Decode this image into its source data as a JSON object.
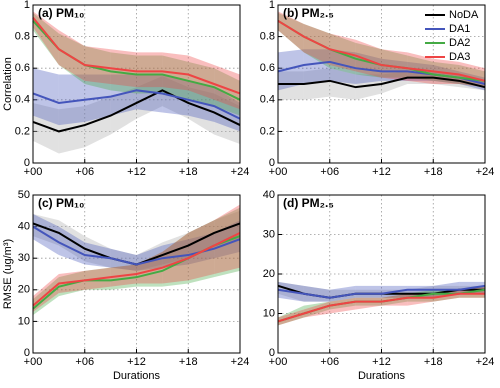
{
  "chart_data": [
    {
      "type": "line",
      "title": "(a) PM₁₀",
      "ylabel": "Correlation",
      "x": [
        0,
        3,
        6,
        9,
        12,
        15,
        18,
        21,
        24
      ],
      "xlim": [
        0,
        24
      ],
      "xticks": [
        {
          "value": 0,
          "label": "+00"
        },
        {
          "value": 6,
          "label": "+06"
        },
        {
          "value": 12,
          "label": "+12"
        },
        {
          "value": 18,
          "label": "+18"
        },
        {
          "value": 24,
          "label": "+24"
        }
      ],
      "ylim": [
        0,
        1
      ],
      "yticks": [
        0,
        0.2,
        0.4,
        0.6,
        0.8,
        1
      ],
      "grid": true,
      "series": [
        {
          "color": "#000000",
          "values": [
            0.26,
            0.2,
            0.24,
            0.3,
            0.38,
            0.46,
            0.38,
            0.32,
            0.24
          ],
          "lower": [
            0.14,
            0.06,
            0.1,
            0.18,
            0.28,
            0.36,
            0.28,
            0.18,
            0.12
          ],
          "upper": [
            0.38,
            0.34,
            0.36,
            0.42,
            0.48,
            0.55,
            0.48,
            0.44,
            0.36
          ]
        },
        {
          "color": "#4455bb",
          "values": [
            0.44,
            0.38,
            0.4,
            0.42,
            0.46,
            0.44,
            0.4,
            0.36,
            0.28
          ],
          "lower": [
            0.3,
            0.24,
            0.26,
            0.3,
            0.34,
            0.32,
            0.3,
            0.26,
            0.2
          ],
          "upper": [
            0.6,
            0.56,
            0.56,
            0.56,
            0.56,
            0.56,
            0.52,
            0.48,
            0.38
          ]
        },
        {
          "color": "#44aa44",
          "values": [
            0.9,
            0.72,
            0.62,
            0.58,
            0.56,
            0.56,
            0.52,
            0.48,
            0.4
          ],
          "lower": [
            0.84,
            0.62,
            0.5,
            0.46,
            0.44,
            0.44,
            0.4,
            0.36,
            0.3
          ],
          "upper": [
            0.95,
            0.82,
            0.74,
            0.7,
            0.68,
            0.68,
            0.64,
            0.6,
            0.52
          ]
        },
        {
          "color": "#ee4444",
          "values": [
            0.92,
            0.72,
            0.62,
            0.6,
            0.58,
            0.58,
            0.56,
            0.5,
            0.44
          ],
          "lower": [
            0.86,
            0.62,
            0.52,
            0.5,
            0.48,
            0.48,
            0.46,
            0.4,
            0.34
          ],
          "upper": [
            0.96,
            0.84,
            0.74,
            0.72,
            0.7,
            0.7,
            0.68,
            0.62,
            0.56
          ]
        }
      ]
    },
    {
      "type": "line",
      "title": "(b) PM₂.₅",
      "legend": "upper right",
      "x": [
        0,
        3,
        6,
        9,
        12,
        15,
        18,
        21,
        24
      ],
      "xlim": [
        0,
        24
      ],
      "xticks": [
        {
          "value": 0,
          "label": "+00"
        },
        {
          "value": 6,
          "label": "+06"
        },
        {
          "value": 12,
          "label": "+12"
        },
        {
          "value": 18,
          "label": "+18"
        },
        {
          "value": 24,
          "label": "+24"
        }
      ],
      "ylim": [
        0,
        1
      ],
      "yticks": [
        0,
        0.2,
        0.4,
        0.6,
        0.8,
        1
      ],
      "grid": true,
      "series": [
        {
          "name": "NoDA",
          "color": "#000000",
          "values": [
            0.5,
            0.5,
            0.52,
            0.48,
            0.5,
            0.54,
            0.54,
            0.52,
            0.48
          ],
          "lower": [
            0.4,
            0.4,
            0.42,
            0.4,
            0.44,
            0.5,
            0.5,
            0.48,
            0.46
          ],
          "upper": [
            0.58,
            0.58,
            0.6,
            0.56,
            0.56,
            0.58,
            0.58,
            0.56,
            0.52
          ]
        },
        {
          "name": "DA1",
          "color": "#4455bb",
          "values": [
            0.58,
            0.62,
            0.64,
            0.6,
            0.58,
            0.58,
            0.56,
            0.54,
            0.5
          ],
          "lower": [
            0.46,
            0.5,
            0.52,
            0.5,
            0.52,
            0.52,
            0.52,
            0.5,
            0.46
          ],
          "upper": [
            0.7,
            0.72,
            0.72,
            0.7,
            0.66,
            0.64,
            0.62,
            0.58,
            0.54
          ]
        },
        {
          "name": "DA2",
          "color": "#44aa44",
          "values": [
            0.9,
            0.8,
            0.72,
            0.66,
            0.62,
            0.6,
            0.56,
            0.54,
            0.52
          ],
          "lower": [
            0.84,
            0.7,
            0.6,
            0.56,
            0.54,
            0.54,
            0.52,
            0.5,
            0.48
          ],
          "upper": [
            0.95,
            0.88,
            0.82,
            0.76,
            0.72,
            0.68,
            0.64,
            0.62,
            0.58
          ]
        },
        {
          "name": "DA3",
          "color": "#ee4444",
          "values": [
            0.9,
            0.8,
            0.72,
            0.68,
            0.62,
            0.6,
            0.58,
            0.56,
            0.52
          ],
          "lower": [
            0.84,
            0.7,
            0.62,
            0.58,
            0.54,
            0.52,
            0.5,
            0.5,
            0.48
          ],
          "upper": [
            0.96,
            0.88,
            0.82,
            0.78,
            0.72,
            0.7,
            0.66,
            0.64,
            0.6
          ]
        }
      ]
    },
    {
      "type": "line",
      "title": "(c) PM₁₀",
      "ylabel": "RMSE (ug/m³)",
      "xlabel": "Durations",
      "x": [
        0,
        3,
        6,
        9,
        12,
        15,
        18,
        21,
        24
      ],
      "xlim": [
        0,
        24
      ],
      "xticks": [
        {
          "value": 0,
          "label": "+00"
        },
        {
          "value": 6,
          "label": "+06"
        },
        {
          "value": 12,
          "label": "+12"
        },
        {
          "value": 18,
          "label": "+18"
        },
        {
          "value": 24,
          "label": "+24"
        }
      ],
      "ylim": [
        0,
        50
      ],
      "yticks": [
        0,
        10,
        20,
        30,
        40,
        50
      ],
      "grid": true,
      "series": [
        {
          "color": "#000000",
          "values": [
            41,
            38,
            33,
            30,
            28,
            31,
            34,
            38,
            41
          ],
          "lower": [
            37,
            34,
            29,
            27,
            26,
            28,
            30,
            33,
            36
          ],
          "upper": [
            44,
            42,
            37,
            33,
            31,
            35,
            38,
            42,
            45
          ]
        },
        {
          "color": "#4455bb",
          "values": [
            40,
            35,
            31,
            30,
            28,
            30,
            31,
            33,
            36
          ],
          "lower": [
            36,
            31,
            28,
            27,
            26,
            27,
            28,
            30,
            32
          ],
          "upper": [
            44,
            40,
            35,
            33,
            31,
            34,
            36,
            38,
            42
          ]
        },
        {
          "color": "#44aa44",
          "values": [
            14,
            21,
            23,
            23,
            24,
            26,
            30,
            34,
            37
          ],
          "lower": [
            12,
            18,
            20,
            20,
            21,
            21,
            22,
            24,
            26
          ],
          "upper": [
            17,
            24,
            26,
            27,
            28,
            32,
            38,
            42,
            46
          ]
        },
        {
          "color": "#ee4444",
          "values": [
            15,
            22,
            23,
            24,
            25,
            27,
            30,
            34,
            38
          ],
          "lower": [
            13,
            19,
            20,
            21,
            22,
            22,
            23,
            25,
            27
          ],
          "upper": [
            18,
            25,
            26,
            27,
            28,
            32,
            38,
            42,
            47
          ]
        }
      ]
    },
    {
      "type": "line",
      "title": "(d) PM₂.₅",
      "xlabel": "Durations",
      "x": [
        0,
        3,
        6,
        9,
        12,
        15,
        18,
        21,
        24
      ],
      "xlim": [
        0,
        24
      ],
      "xticks": [
        {
          "value": 0,
          "label": "+00"
        },
        {
          "value": 6,
          "label": "+06"
        },
        {
          "value": 12,
          "label": "+12"
        },
        {
          "value": 18,
          "label": "+18"
        },
        {
          "value": 24,
          "label": "+24"
        }
      ],
      "ylim": [
        0,
        40
      ],
      "yticks": [
        0,
        10,
        20,
        30,
        40
      ],
      "grid": true,
      "series": [
        {
          "color": "#000000",
          "values": [
            17,
            15,
            14,
            15,
            15,
            15,
            15,
            16,
            16
          ],
          "lower": [
            15,
            13,
            13,
            14,
            14,
            14,
            14,
            15,
            15
          ],
          "upper": [
            18,
            17,
            16,
            16,
            16,
            16,
            17,
            17,
            17
          ]
        },
        {
          "color": "#4455bb",
          "values": [
            16,
            15,
            14,
            15,
            15,
            16,
            16,
            16,
            17
          ],
          "lower": [
            14,
            13,
            13,
            14,
            14,
            14,
            14,
            15,
            15
          ],
          "upper": [
            18,
            17,
            16,
            17,
            17,
            17,
            17,
            18,
            18
          ]
        },
        {
          "color": "#44aa44",
          "values": [
            8,
            10,
            12,
            13,
            13,
            14,
            15,
            15,
            16
          ],
          "lower": [
            7,
            9,
            11,
            12,
            12,
            13,
            13,
            14,
            14
          ],
          "upper": [
            9,
            12,
            13,
            14,
            14,
            15,
            16,
            16,
            17
          ]
        },
        {
          "color": "#ee4444",
          "values": [
            8,
            10,
            12,
            13,
            13,
            14,
            14,
            15,
            15
          ],
          "lower": [
            7,
            9,
            10,
            11,
            12,
            12,
            13,
            14,
            14
          ],
          "upper": [
            9,
            11,
            13,
            14,
            14,
            15,
            15,
            16,
            17
          ]
        }
      ]
    }
  ]
}
